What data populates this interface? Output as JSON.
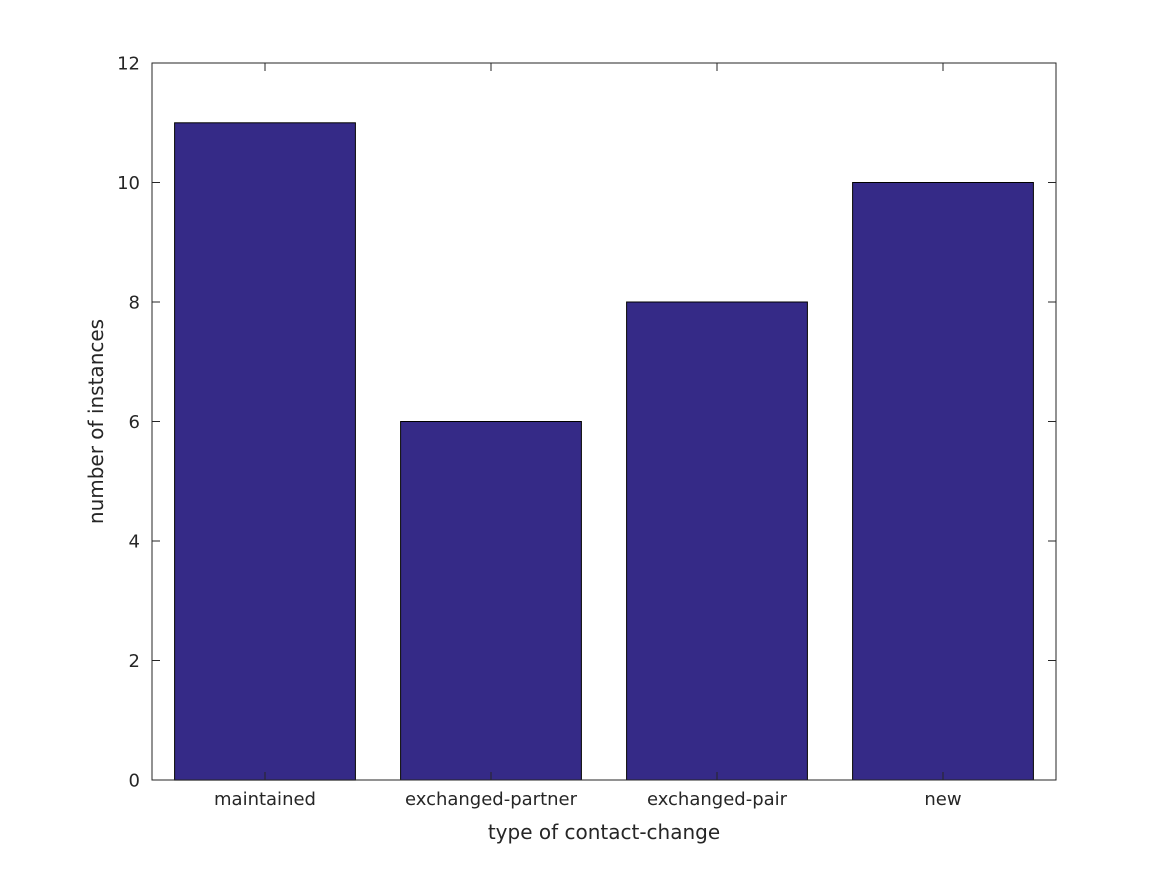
{
  "chart_data": {
    "type": "bar",
    "categories": [
      "maintained",
      "exchanged-partner",
      "exchanged-pair",
      "new"
    ],
    "values": [
      11,
      6,
      8,
      10
    ],
    "title": "",
    "xlabel": "type of contact-change",
    "ylabel": "number of instances",
    "ylim": [
      0,
      12
    ],
    "yticks": [
      0,
      2,
      4,
      6,
      8,
      10,
      12
    ],
    "bar_color": "#352a87",
    "bar_edge_color": "#000000",
    "axis_color": "#262626",
    "background_color": "#ffffff",
    "grid": false,
    "legend_position": "none",
    "bar_width_fraction": 0.8,
    "ticks_direction": "in",
    "box": true
  }
}
